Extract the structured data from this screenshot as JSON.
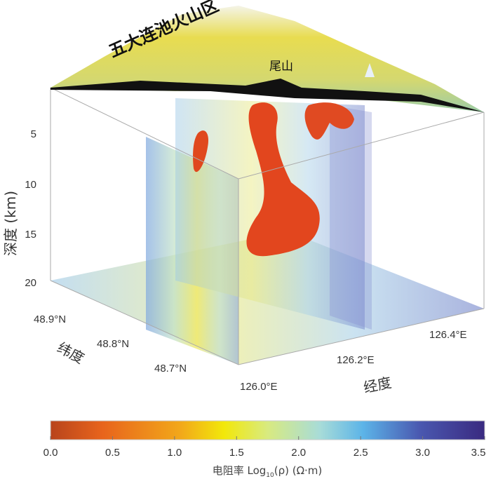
{
  "chart_data": {
    "type": "3d-volume",
    "title": "五大连池火山区",
    "annotations": [
      {
        "text": "尾山"
      }
    ],
    "zlabel": "深度 (km)",
    "zticks": [
      "5",
      "10",
      "15",
      "20"
    ],
    "ylabel": "纬度",
    "yticks": [
      "48.9°N",
      "48.8°N",
      "48.7°N"
    ],
    "xlabel": "经度",
    "xticks": [
      "126.0°E",
      "126.2°E",
      "126.4°E"
    ],
    "colorbar": {
      "label_prefix": "电阻率 Log",
      "label_sub": "10",
      "label_suffix": "(ρ) (Ω·m)",
      "range": [
        0.0,
        3.5
      ],
      "ticks": [
        "0.0",
        "0.5",
        "1.0",
        "1.5",
        "2.0",
        "2.5",
        "3.0",
        "3.5"
      ],
      "colors": [
        "#b8441c",
        "#e8641c",
        "#f2a81a",
        "#f2e80a",
        "#d8ea80",
        "#a8dcd8",
        "#5cb4e8",
        "#4a58b0",
        "#3a2a80"
      ],
      "placement": "bottom"
    }
  }
}
